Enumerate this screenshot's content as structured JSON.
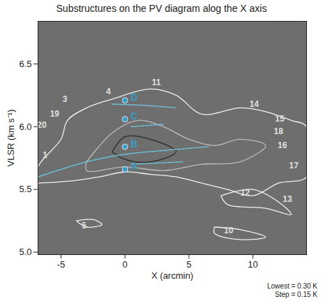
{
  "chart_data": {
    "type": "pv_diagram",
    "title": "Substructures on the PV diagram alog the X axis",
    "xlabel": "X (arcmin)",
    "ylabel": "VLSR (km s⁻¹)",
    "caption": [
      "Lowest = 0.30 K",
      "Step = 0.15 K"
    ],
    "xlim": [
      -6.8,
      14.2
    ],
    "xticks": [
      -5,
      0,
      5,
      10
    ],
    "ylim": [
      4.98,
      6.84
    ],
    "yticks": [
      {
        "value": 5.0,
        "label": "5.0"
      },
      {
        "value": 5.5,
        "label": "5.5"
      },
      {
        "value": 6.0,
        "label": "6.0"
      },
      {
        "value": 6.5,
        "label": "6.5"
      }
    ],
    "color": "#6e6e6e",
    "contours": [
      {
        "color": "#f2f2f2",
        "points": [
          [
            -6.8,
            5.55
          ],
          [
            -6.8,
            5.68
          ],
          [
            -5,
            5.9
          ],
          [
            -4.5,
            6.05
          ],
          [
            -3,
            6.15
          ],
          [
            -1,
            6.22
          ],
          [
            2,
            6.3
          ],
          [
            4,
            6.25
          ],
          [
            6,
            6.1
          ],
          [
            9,
            6.15
          ],
          [
            11,
            6.12
          ],
          [
            13,
            6.05
          ],
          [
            14.2,
            6.0
          ],
          [
            14.2,
            5.6
          ],
          [
            12,
            5.55
          ],
          [
            10,
            5.45
          ],
          [
            8,
            5.5
          ],
          [
            6,
            5.55
          ],
          [
            4,
            5.6
          ],
          [
            2,
            5.62
          ],
          [
            0,
            5.64
          ],
          [
            -2,
            5.6
          ],
          [
            -4,
            5.57
          ],
          [
            -6.8,
            5.55
          ]
        ]
      },
      {
        "color": "#f2f2f2",
        "points": [
          [
            7.5,
            5.45
          ],
          [
            10,
            5.5
          ],
          [
            12,
            5.4
          ],
          [
            13,
            5.3
          ],
          [
            11,
            5.35
          ],
          [
            8,
            5.38
          ],
          [
            7.5,
            5.45
          ]
        ]
      },
      {
        "color": "#f2f2f2",
        "points": [
          [
            7,
            5.2
          ],
          [
            9,
            5.18
          ],
          [
            11,
            5.12
          ],
          [
            9,
            5.1
          ],
          [
            7,
            5.15
          ],
          [
            7,
            5.2
          ]
        ]
      },
      {
        "color": "#f2f2f2",
        "points": [
          [
            -3.8,
            5.25
          ],
          [
            -2.5,
            5.26
          ],
          [
            -1.8,
            5.22
          ],
          [
            -3,
            5.2
          ],
          [
            -3.8,
            5.25
          ]
        ]
      },
      {
        "color": "#bdbdbd",
        "points": [
          [
            -3,
            5.72
          ],
          [
            -1,
            5.95
          ],
          [
            1,
            6.05
          ],
          [
            3,
            6.0
          ],
          [
            5,
            5.9
          ],
          [
            7,
            5.85
          ],
          [
            9,
            5.9
          ],
          [
            11,
            5.85
          ],
          [
            9,
            5.72
          ],
          [
            6,
            5.7
          ],
          [
            3,
            5.65
          ],
          [
            0,
            5.68
          ],
          [
            -3,
            5.65
          ],
          [
            -3,
            5.72
          ]
        ]
      },
      {
        "color": "#2a2a2a",
        "points": [
          [
            -1,
            5.8
          ],
          [
            0,
            5.92
          ],
          [
            2,
            5.9
          ],
          [
            4,
            5.8
          ],
          [
            2,
            5.72
          ],
          [
            0,
            5.74
          ],
          [
            -1,
            5.8
          ]
        ]
      }
    ],
    "substructure_lines": {
      "color": "#6cd0ee",
      "lines": [
        [
          [
            -6.8,
            5.6
          ],
          [
            -3,
            5.72
          ],
          [
            0,
            5.78
          ],
          [
            3,
            5.81
          ],
          [
            6.5,
            5.84
          ]
        ],
        [
          [
            -1,
            6.18
          ],
          [
            1.5,
            6.17
          ],
          [
            4,
            6.15
          ]
        ],
        [
          [
            0.5,
            6.0
          ],
          [
            1.8,
            6.01
          ],
          [
            3,
            6.02
          ]
        ],
        [
          [
            0.5,
            5.7
          ],
          [
            2.5,
            5.71
          ],
          [
            4.5,
            5.72
          ]
        ]
      ]
    },
    "points": {
      "color": "#3a9cc4",
      "items": [
        {
          "label": "A",
          "x": 0,
          "y": 5.66
        },
        {
          "label": "B",
          "x": 0,
          "y": 5.84
        },
        {
          "label": "C",
          "x": 0,
          "y": 6.06
        },
        {
          "label": "D",
          "x": 0,
          "y": 6.21
        }
      ]
    },
    "labels": {
      "color": "#e0e0e0",
      "items": [
        {
          "text": "1",
          "x": -6.25,
          "y": 5.77
        },
        {
          "text": "3",
          "x": -4.7,
          "y": 6.22
        },
        {
          "text": "4",
          "x": -1.3,
          "y": 6.28
        },
        {
          "text": "5",
          "x": -3.2,
          "y": 5.21
        },
        {
          "text": "10",
          "x": 8.1,
          "y": 5.17
        },
        {
          "text": "11",
          "x": 2.45,
          "y": 6.35
        },
        {
          "text": "12",
          "x": 9.4,
          "y": 5.47
        },
        {
          "text": "13",
          "x": 12.7,
          "y": 5.42
        },
        {
          "text": "14",
          "x": 10.1,
          "y": 6.18
        },
        {
          "text": "15",
          "x": 12.1,
          "y": 6.06
        },
        {
          "text": "16",
          "x": 12.3,
          "y": 5.85
        },
        {
          "text": "17",
          "x": 13.2,
          "y": 5.69
        },
        {
          "text": "18",
          "x": 12.0,
          "y": 5.96
        },
        {
          "text": "19",
          "x": -5.5,
          "y": 6.1
        },
        {
          "text": "20",
          "x": -6.5,
          "y": 6.01
        }
      ]
    }
  }
}
